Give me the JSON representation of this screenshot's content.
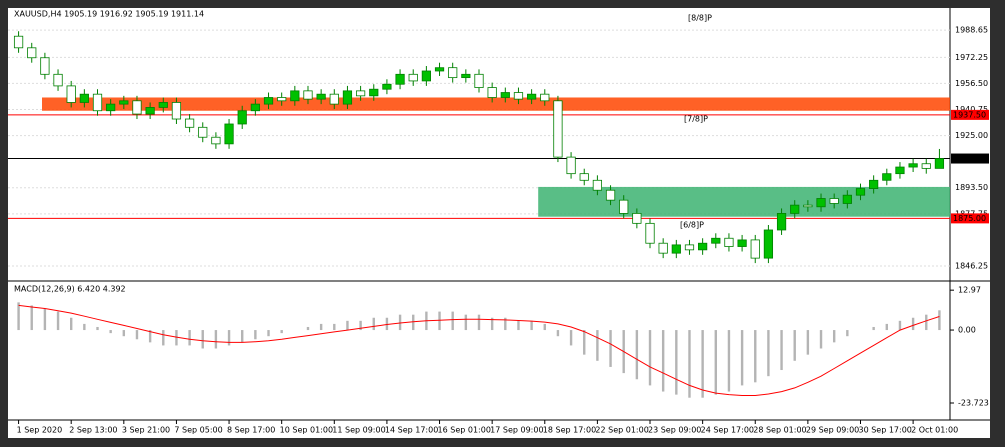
{
  "chart_data": [
    {
      "type": "candlestick",
      "title": "XAUUSD,H4  1905.19 1916.92 1905.19 1911.14",
      "categories": [
        "1 Sep 2020",
        null,
        null,
        null,
        "2 Sep 13:00",
        null,
        null,
        null,
        "3 Sep 21:00",
        null,
        null,
        null,
        "7 Sep 05:00",
        null,
        null,
        null,
        "8 Sep 17:00",
        null,
        null,
        null,
        "10 Sep 01:00",
        null,
        null,
        null,
        "11 Sep 09:00",
        null,
        null,
        null,
        "14 Sep 17:00",
        null,
        null,
        null,
        "16 Sep 01:00",
        null,
        null,
        null,
        "17 Sep 09:00",
        null,
        null,
        null,
        "18 Sep 17:00",
        null,
        null,
        null,
        "22 Sep 01:00",
        null,
        null,
        null,
        "23 Sep 09:00",
        null,
        null,
        null,
        "24 Sep 17:00",
        null,
        null,
        null,
        "28 Sep 01:00",
        null,
        null,
        null,
        "29 Sep 09:00",
        null,
        null,
        null,
        "30 Sep 17:00",
        null,
        null,
        null,
        "2 Oct 01:00",
        null,
        null
      ],
      "open": [
        1985,
        1978,
        1972,
        1962,
        1955,
        1945,
        1950,
        1940,
        1944,
        1946,
        1938,
        1942,
        1945,
        1935,
        1930,
        1924,
        1920,
        1932,
        1940,
        1944,
        1948,
        1946,
        1952,
        1947,
        1950,
        1944,
        1952,
        1949,
        1953,
        1956,
        1962,
        1958,
        1964,
        1966,
        1960,
        1962,
        1954,
        1948,
        1951,
        1947,
        1950,
        1946,
        1912,
        1902,
        1898,
        1892,
        1886,
        1878,
        1872,
        1860,
        1854,
        1859,
        1856,
        1860,
        1863,
        1858,
        1862,
        1851,
        1868,
        1878,
        1883,
        1882,
        1887,
        1884,
        1889,
        1893,
        1898,
        1902,
        1906,
        1908,
        1905.19
      ],
      "high": [
        1988,
        1981,
        1975,
        1965,
        1958,
        1953,
        1953,
        1947,
        1949,
        1949,
        1945,
        1948,
        1948,
        1938,
        1933,
        1927,
        1935,
        1943,
        1947,
        1951,
        1951,
        1955,
        1955,
        1953,
        1953,
        1955,
        1955,
        1956,
        1959,
        1965,
        1965,
        1967,
        1969,
        1969,
        1965,
        1965,
        1957,
        1954,
        1954,
        1953,
        1953,
        1949,
        1915,
        1905,
        1901,
        1895,
        1889,
        1881,
        1875,
        1863,
        1862,
        1862,
        1863,
        1866,
        1866,
        1865,
        1865,
        1871,
        1881,
        1886,
        1886,
        1890,
        1890,
        1892,
        1896,
        1901,
        1905,
        1909,
        1911,
        1911,
        1916.92
      ],
      "low": [
        1975,
        1969,
        1959,
        1952,
        1942,
        1942,
        1937,
        1937,
        1941,
        1935,
        1935,
        1939,
        1932,
        1927,
        1921,
        1917,
        1917,
        1929,
        1937,
        1941,
        1943,
        1943,
        1944,
        1944,
        1941,
        1941,
        1946,
        1946,
        1950,
        1953,
        1955,
        1955,
        1961,
        1957,
        1957,
        1951,
        1945,
        1945,
        1944,
        1944,
        1943,
        1909,
        1899,
        1895,
        1889,
        1883,
        1875,
        1869,
        1857,
        1851,
        1851,
        1853,
        1853,
        1857,
        1855,
        1855,
        1848,
        1848,
        1865,
        1875,
        1879,
        1879,
        1881,
        1881,
        1886,
        1890,
        1895,
        1899,
        1903,
        1902,
        1905.19
      ],
      "close": [
        1978,
        1972,
        1962,
        1955,
        1945,
        1950,
        1940,
        1944,
        1946,
        1938,
        1942,
        1945,
        1935,
        1930,
        1924,
        1920,
        1932,
        1940,
        1944,
        1948,
        1946,
        1952,
        1947,
        1950,
        1944,
        1952,
        1949,
        1953,
        1956,
        1962,
        1958,
        1964,
        1966,
        1960,
        1962,
        1954,
        1948,
        1951,
        1947,
        1950,
        1946,
        1912,
        1902,
        1898,
        1892,
        1886,
        1878,
        1872,
        1860,
        1854,
        1859,
        1856,
        1860,
        1863,
        1858,
        1862,
        1851,
        1868,
        1878,
        1883,
        1882,
        1887,
        1884,
        1889,
        1893,
        1898,
        1902,
        1906,
        1908,
        1905.19,
        1911.14
      ],
      "up_color": "#00c000",
      "down_color": "#ffffff",
      "wick_color": "#008000",
      "ylim": [
        1839,
        1996
      ],
      "yticks": [
        1988.65,
        1972.25,
        {
          "value": 1956.5,
          "label": "1956.50"
        },
        1940.75,
        {
          "value": 1925,
          "label": "1925.00"
        },
        {
          "value": 1893.5,
          "label": "1893.50"
        },
        1877.75,
        1846.25
      ],
      "grid": true,
      "levels": [
        {
          "value": 1937.5,
          "label": "1937.50",
          "color": "#ff0000"
        },
        {
          "value": 1875,
          "label": "1875.00",
          "color": "#ff0000"
        },
        {
          "value": 1911.14,
          "color": "#000000"
        }
      ],
      "zones": [
        {
          "from": 1940,
          "to": 1948,
          "color": "#ff4500"
        },
        {
          "from": 1876,
          "to": 1894,
          "color": "#3cb371"
        }
      ],
      "annotations": [
        {
          "text": "[8/8]P",
          "value": 1996
        },
        {
          "text": "[7/8]P",
          "value": 1935
        },
        {
          "text": "[6/8]P",
          "value": 1871
        }
      ]
    },
    {
      "type": "macd",
      "title": "MACD(12,26,9) 6.420 4.392",
      "histogram": [
        9,
        8,
        7,
        6,
        4,
        2,
        1,
        -1,
        -2,
        -3,
        -4,
        -5,
        -5,
        -5,
        -6,
        -6,
        -5,
        -4,
        -3,
        -2,
        -1,
        0,
        1,
        2,
        2,
        3,
        3,
        4,
        4,
        5,
        5,
        6,
        6,
        6,
        5,
        5,
        4,
        4,
        3,
        3,
        2,
        -2,
        -5,
        -8,
        -10,
        -12,
        -14,
        -16,
        -18,
        -20,
        -21,
        -22,
        -22,
        -21,
        -20,
        -18,
        -17,
        -15,
        -13,
        -10,
        -8,
        -6,
        -4,
        -2,
        0,
        1,
        2,
        3,
        4,
        5,
        6.42
      ],
      "signal": [
        8,
        7.5,
        7,
        6.3,
        5.5,
        4.5,
        3.5,
        2.5,
        1.5,
        0.5,
        -0.5,
        -1.5,
        -2.3,
        -3,
        -3.5,
        -3.8,
        -4,
        -4,
        -3.8,
        -3.5,
        -3,
        -2.4,
        -1.8,
        -1.2,
        -0.6,
        0,
        0.6,
        1.2,
        1.8,
        2.3,
        2.7,
        3,
        3.2,
        3.4,
        3.5,
        3.5,
        3.4,
        3.3,
        3.1,
        2.9,
        2.6,
        2,
        1,
        -0.5,
        -2.5,
        -4.5,
        -7,
        -9.5,
        -12,
        -14,
        -16,
        -18,
        -19.5,
        -20.5,
        -21,
        -21.3,
        -21.3,
        -20.8,
        -20,
        -18.8,
        -17,
        -15,
        -12.5,
        -10,
        -7.5,
        -5,
        -2.5,
        0,
        1.5,
        3,
        4.392
      ],
      "histogram_color": "#b4b4b4",
      "signal_color": "#ff0000",
      "ylim": [
        -26,
        14
      ],
      "yticks": [
        12.97,
        {
          "value": 0,
          "label": "0.00"
        },
        -23.723
      ]
    }
  ]
}
